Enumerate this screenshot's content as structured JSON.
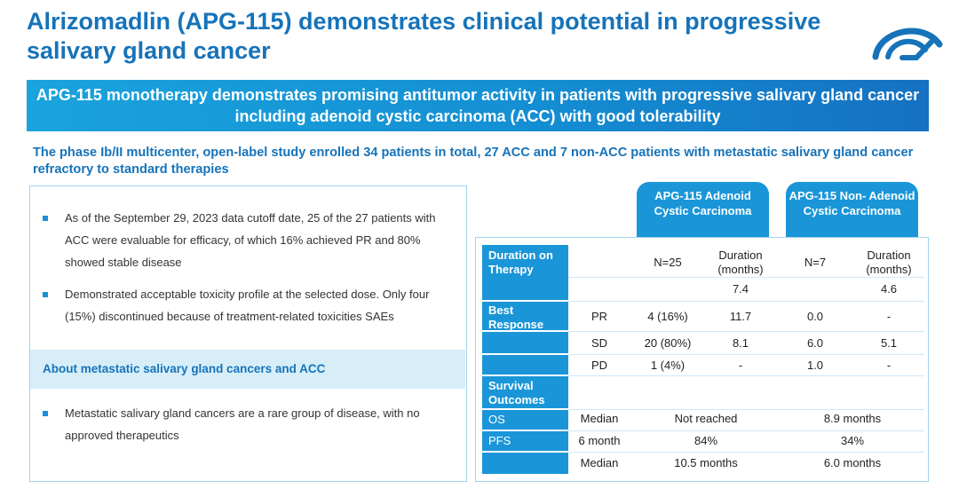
{
  "title": "Alrizomadlin (APG-115) demonstrates clinical potential in progressive salivary gland cancer",
  "logo": {
    "icon": "company-logo-icon",
    "color": "#1673b9"
  },
  "banner": {
    "text": "APG-115 monotherapy demonstrates promising antitumor activity in patients with progressive salivary gland cancer including adenoid cystic carcinoma (ACC) with good tolerability"
  },
  "intro": "The phase Ib/II multicenter, open-label study enrolled 34 patients in total, 27 ACC and 7 non-ACC patients with metastatic salivary gland cancer refractory to standard therapies",
  "left_panel": {
    "bullets": [
      "As of the September 29, 2023 data cutoff date, 25 of the 27 patients with ACC were evaluable for efficacy, of which 16% achieved PR and 80% showed stable disease",
      "Demonstrated acceptable toxicity profile at the selected dose. Only four (15%) discontinued because of treatment-related toxicities SAEs"
    ],
    "about_heading": "About metastatic salivary gland cancers and ACC",
    "about_bullets": [
      "Metastatic salivary gland cancers are a rare group of disease, with no approved therapeutics"
    ]
  },
  "table": {
    "col_headers": {
      "acc": "APG-115 Adenoid Cystic Carcinoma",
      "non_acc": "APG-115 Non- Adenoid Cystic Carcinoma"
    },
    "sections": {
      "duration": "Duration on Therapy",
      "best_response": "Best Response",
      "survival": "Survival Outcomes"
    },
    "header_row": {
      "acc_n": "N=25",
      "acc_duration": "Duration (months)",
      "non_n": "N=7",
      "non_duration": "Duration (months)"
    },
    "duration_row": {
      "acc_duration": "7.4",
      "non_duration": "4.6"
    },
    "response_rows": [
      {
        "label": "PR",
        "acc_n": "4 (16%)",
        "acc_duration": "11.7",
        "non_n": "0.0",
        "non_duration": "-"
      },
      {
        "label": "SD",
        "acc_n": "20 (80%)",
        "acc_duration": "8.1",
        "non_n": "6.0",
        "non_duration": "5.1"
      },
      {
        "label": "PD",
        "acc_n": "1 (4%)",
        "acc_duration": "-",
        "non_n": "1.0",
        "non_duration": "-"
      }
    ],
    "survival_rows": [
      {
        "endpoint": "OS",
        "measure": "Median",
        "acc": "Not reached",
        "non_acc": "8.9 months"
      },
      {
        "endpoint": "PFS",
        "measure": "6 month",
        "acc": "84%",
        "non_acc": "34%"
      },
      {
        "endpoint": "",
        "measure": "Median",
        "acc": "10.5 months",
        "non_acc": "6.0 months"
      }
    ]
  },
  "colors": {
    "brand_blue": "#1673b9",
    "header_blue": "#1a96d8",
    "panel_border": "#9fd3ef",
    "light_band": "#d7eef9"
  }
}
